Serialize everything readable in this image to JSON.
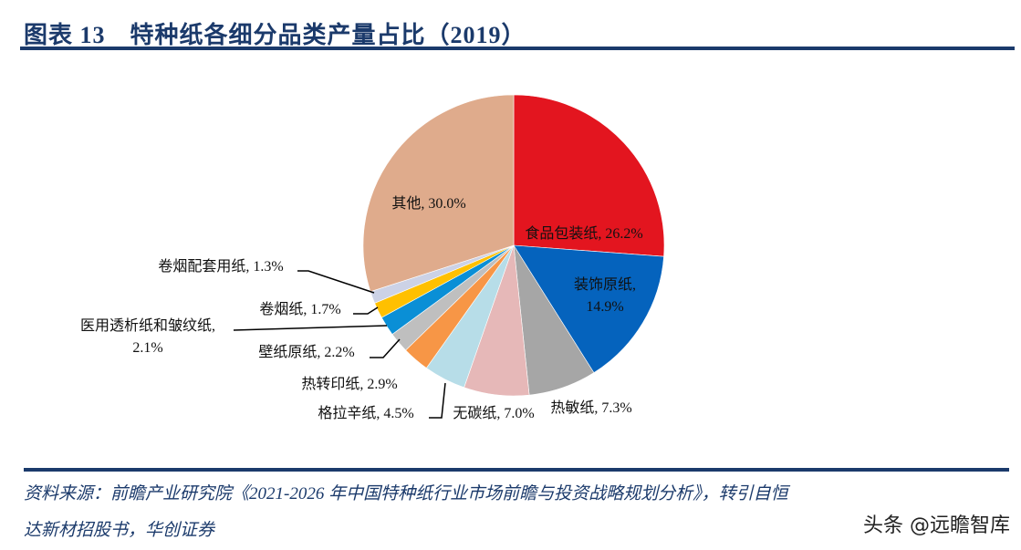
{
  "header": {
    "title": "图表 13　特种纸各细分品类产量占比（2019）"
  },
  "chart_data": {
    "type": "pie",
    "title": "特种纸各细分品类产量占比（2019）",
    "start_angle": "12 o'clock",
    "direction": "clockwise",
    "slices": [
      {
        "name": "食品包装纸",
        "value": 26.2,
        "label": "食品包装纸, 26.2%",
        "color": "#e3151f"
      },
      {
        "name": "装饰原纸",
        "value": 14.9,
        "label": "装饰原纸, 14.9%",
        "color": "#0563bd"
      },
      {
        "name": "热敏纸",
        "value": 7.3,
        "label": "热敏纸, 7.3%",
        "color": "#a6a6a6"
      },
      {
        "name": "无碳纸",
        "value": 7.0,
        "label": "无碳纸, 7.0%",
        "color": "#e6b8b8"
      },
      {
        "name": "格拉辛纸",
        "value": 4.5,
        "label": "格拉辛纸, 4.5%",
        "color": "#b7dde8"
      },
      {
        "name": "热转印纸",
        "value": 2.9,
        "label": "热转印纸, 2.9%",
        "color": "#f79646"
      },
      {
        "name": "壁纸原纸",
        "value": 2.2,
        "label": "壁纸原纸, 2.2%",
        "color": "#bfbfbf"
      },
      {
        "name": "医用透析纸和皱纹纸",
        "value": 2.1,
        "label": "医用透析纸和皱纹纸, 2.1%",
        "color": "#0a8fd6"
      },
      {
        "name": "卷烟纸",
        "value": 1.7,
        "label": "卷烟纸, 1.7%",
        "color": "#ffc000"
      },
      {
        "name": "卷烟配套用纸",
        "value": 1.3,
        "label": "卷烟配套用纸, 1.3%",
        "color": "#ccd2e6"
      },
      {
        "name": "其他",
        "value": 30.0,
        "label": "其他, 30.0%",
        "color": "#dfab8c"
      }
    ]
  },
  "footer": {
    "source_line1": "资料来源：前瞻产业研究院《2021-2026 年中国特种纸行业市场前瞻与投资战略规划分析》，转引自恒",
    "source_line2": "达新材招股书，华创证券",
    "watermark": "头条 @远瞻智库"
  }
}
